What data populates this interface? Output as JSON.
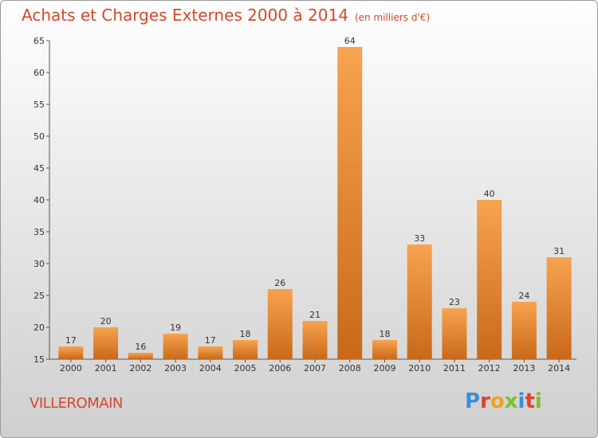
{
  "header": {
    "title": "Achats et Charges Externes 2000 à 2014",
    "unit": "(en milliers d'€)"
  },
  "footer": {
    "town": "VILLEROMAIN",
    "logo": "Proxiti"
  },
  "colors": {
    "title": "#d6482c",
    "bar_top": "#f7a34f",
    "bar_bottom": "#c8691a"
  },
  "chart_data": {
    "type": "bar",
    "title": "Achats et Charges Externes 2000 à 2014",
    "subtitle": "(en milliers d'€)",
    "xlabel": "",
    "ylabel": "",
    "categories": [
      "2000",
      "2001",
      "2002",
      "2003",
      "2004",
      "2005",
      "2006",
      "2007",
      "2008",
      "2009",
      "2010",
      "2011",
      "2012",
      "2013",
      "2014"
    ],
    "values": [
      17,
      20,
      16,
      19,
      17,
      18,
      26,
      21,
      64,
      18,
      33,
      23,
      40,
      24,
      31
    ],
    "ylim": [
      15,
      65
    ],
    "yticks": [
      15,
      20,
      25,
      30,
      35,
      40,
      45,
      50,
      55,
      60,
      65
    ],
    "grid": false,
    "legend": "none"
  }
}
